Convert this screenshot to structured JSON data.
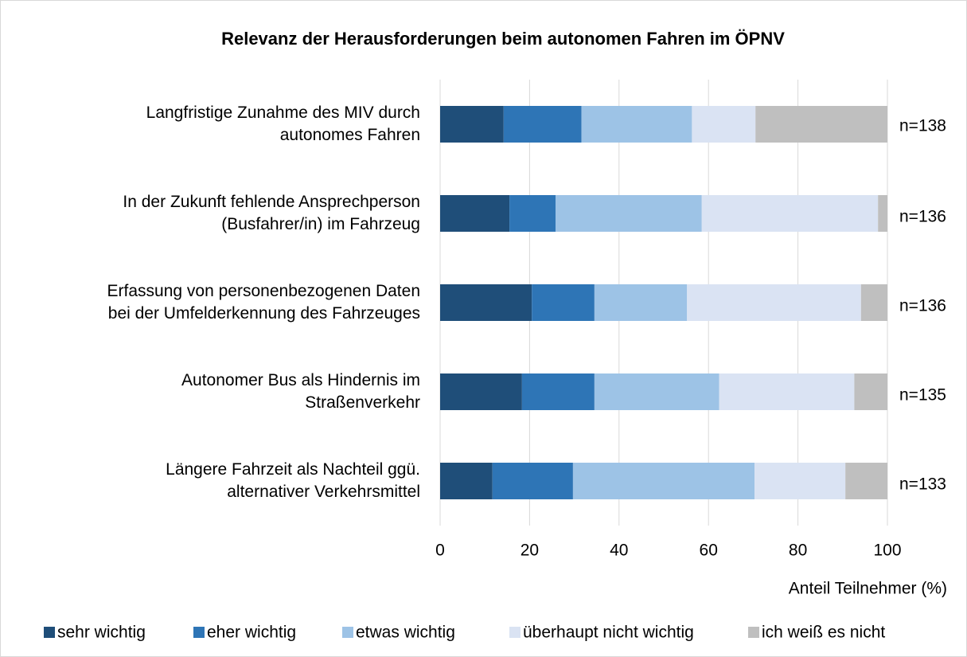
{
  "chart_data": {
    "type": "stacked_barh",
    "title": "Relevanz der Herausforderungen beim autonomen Fahren im ÖPNV",
    "categories": [
      [
        "Langfristige Zunahme des MIV durch",
        "autonomes Fahren"
      ],
      [
        "In der Zukunft fehlende Ansprechperson",
        "(Busfahrer/in) im Fahrzeug"
      ],
      [
        "Erfassung von personenbezogenen Daten",
        "bei der Umfelderkennung des Fahrzeuges"
      ],
      [
        "Autonomer Bus als Hindernis im",
        "Straßenverkehr"
      ],
      [
        "Längere Fahrzeit als Nachteil ggü.",
        "alternativer Verkehrsmittel"
      ]
    ],
    "n_labels": [
      "n=138",
      "n=136",
      "n=136",
      "n=135",
      "n=133"
    ],
    "series": [
      {
        "name": "sehr wichtig",
        "color": "#1f4e79",
        "values": [
          14.2,
          15.5,
          20.5,
          18.3,
          11.7
        ]
      },
      {
        "name": "eher wichtig",
        "color": "#2e75b6",
        "values": [
          17.4,
          10.3,
          14.0,
          16.2,
          18.0
        ]
      },
      {
        "name": "etwas wichtig",
        "color": "#9dc3e6",
        "values": [
          24.7,
          32.7,
          20.7,
          27.9,
          40.6
        ]
      },
      {
        "name": "überhaupt nicht wichtig",
        "color": "#dae3f3",
        "values": [
          14.2,
          39.4,
          38.9,
          30.2,
          20.3
        ]
      },
      {
        "name": "ich weiß es nicht",
        "color": "#bfbfbf",
        "values": [
          29.5,
          2.1,
          5.9,
          7.4,
          9.4
        ]
      }
    ],
    "xlabel": "Anteil Teilnehmer (%)",
    "xlim": [
      0,
      100
    ],
    "xticks": [
      0,
      20,
      40,
      60,
      80,
      100
    ],
    "grid": true,
    "legend": "bottom"
  }
}
